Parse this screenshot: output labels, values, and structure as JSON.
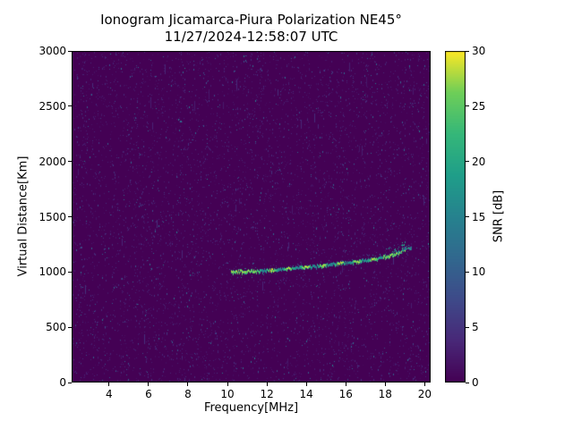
{
  "chart_data": {
    "type": "heatmap",
    "title": "Ionogram Jicamarca-Piura Polarization NE45°",
    "subtitle": "11/27/2024-12:58:07 UTC",
    "xlabel": "Frequency[MHz]",
    "ylabel": "Virtual Distance[Km]",
    "xlim": [
      2.1,
      20.3
    ],
    "ylim": [
      0,
      3000
    ],
    "x_ticks": [
      4,
      6,
      8,
      10,
      12,
      14,
      16,
      18,
      20
    ],
    "y_ticks": [
      0,
      500,
      1000,
      1500,
      2000,
      2500,
      3000
    ],
    "grid": false,
    "legend": "none",
    "colorbar": {
      "label": "SNR [dB]",
      "min": 0,
      "max": 30,
      "ticks": [
        0,
        5,
        10,
        15,
        20,
        25,
        30
      ],
      "position": "right"
    },
    "colormap": {
      "name": "viridis",
      "stops": [
        {
          "pos": 0.0,
          "color": "#440154"
        },
        {
          "pos": 0.125,
          "color": "#482878"
        },
        {
          "pos": 0.25,
          "color": "#3e4a89"
        },
        {
          "pos": 0.375,
          "color": "#31688e"
        },
        {
          "pos": 0.5,
          "color": "#26828e"
        },
        {
          "pos": 0.625,
          "color": "#1f9e89"
        },
        {
          "pos": 0.75,
          "color": "#35b779"
        },
        {
          "pos": 0.875,
          "color": "#6ece58"
        },
        {
          "pos": 1.0,
          "color": "#fde725"
        }
      ]
    },
    "background": {
      "snr_db": 0,
      "color": "#440154",
      "noise": "sparse low-SNR speckle (roughly 1-14 dB) scattered over the whole plot"
    },
    "series": [
      {
        "name": "F-region echo trace",
        "type": "trace",
        "snr_db_range": [
          14,
          30
        ],
        "points_freq_mhz_vs_virtual_km": [
          [
            10.2,
            1000
          ],
          [
            10.5,
            1001
          ],
          [
            11.0,
            1004
          ],
          [
            11.5,
            1008
          ],
          [
            12.0,
            1013
          ],
          [
            12.5,
            1019
          ],
          [
            13.0,
            1026
          ],
          [
            13.5,
            1034
          ],
          [
            14.0,
            1043
          ],
          [
            14.5,
            1052
          ],
          [
            15.0,
            1061
          ],
          [
            15.5,
            1071
          ],
          [
            16.0,
            1081
          ],
          [
            16.5,
            1092
          ],
          [
            17.0,
            1104
          ],
          [
            17.5,
            1118
          ],
          [
            18.0,
            1135
          ],
          [
            18.3,
            1148
          ],
          [
            18.6,
            1165
          ],
          [
            18.8,
            1180
          ],
          [
            19.0,
            1200
          ]
        ]
      },
      {
        "name": "spread echoes near trace tip",
        "type": "scatter",
        "freq_range_mhz": [
          18.0,
          19.35
        ],
        "virtual_km_range": [
          1150,
          1270
        ],
        "snr_db_range": [
          8,
          22
        ]
      }
    ]
  }
}
